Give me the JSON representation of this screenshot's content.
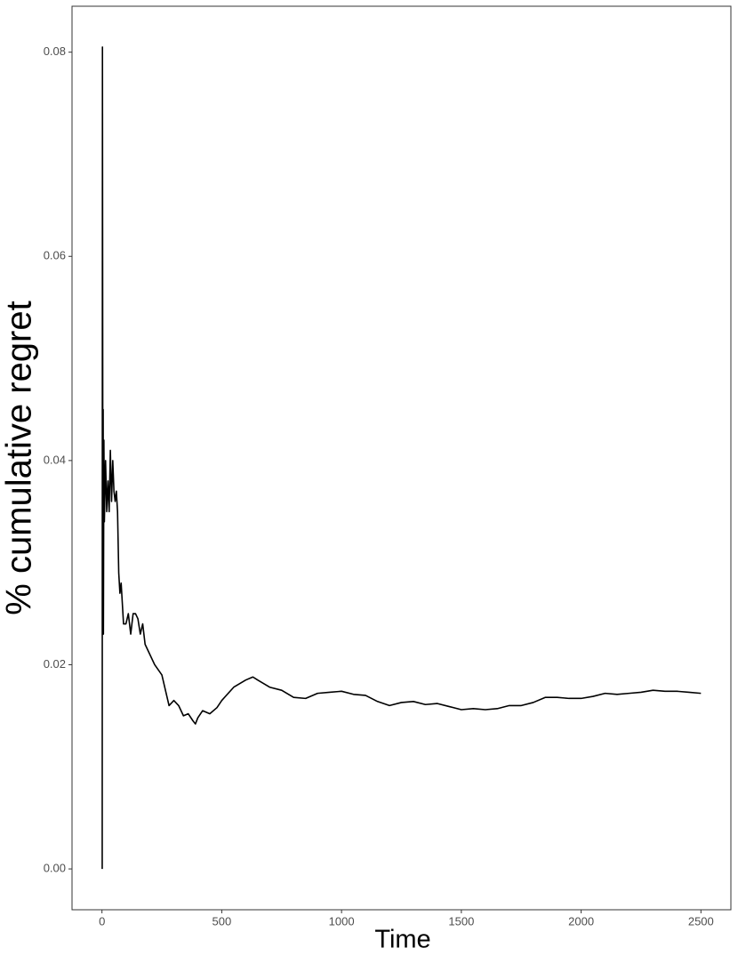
{
  "chart_data": {
    "type": "line",
    "xlabel": "Time",
    "ylabel": "% cumulative regret",
    "color": "#000000",
    "x": [
      1,
      2,
      3,
      4,
      5,
      6,
      8,
      10,
      15,
      20,
      25,
      30,
      35,
      40,
      45,
      50,
      55,
      60,
      65,
      70,
      75,
      80,
      90,
      100,
      110,
      120,
      130,
      140,
      150,
      160,
      170,
      180,
      200,
      220,
      250,
      270,
      280,
      300,
      320,
      340,
      360,
      380,
      390,
      400,
      420,
      450,
      480,
      500,
      550,
      600,
      630,
      650,
      700,
      750,
      800,
      850,
      900,
      950,
      1000,
      1050,
      1100,
      1150,
      1200,
      1250,
      1300,
      1350,
      1400,
      1450,
      1500,
      1550,
      1600,
      1650,
      1700,
      1750,
      1800,
      1850,
      1900,
      1950,
      2000,
      2050,
      2100,
      2150,
      2200,
      2250,
      2300,
      2350,
      2400,
      2450,
      2500
    ],
    "values": [
      0,
      0.0805,
      0.052,
      0.023,
      0.045,
      0.023,
      0.042,
      0.034,
      0.04,
      0.035,
      0.038,
      0.035,
      0.041,
      0.036,
      0.04,
      0.037,
      0.036,
      0.037,
      0.035,
      0.029,
      0.027,
      0.028,
      0.024,
      0.024,
      0.025,
      0.023,
      0.025,
      0.025,
      0.0245,
      0.023,
      0.024,
      0.022,
      0.021,
      0.02,
      0.019,
      0.017,
      0.016,
      0.0165,
      0.016,
      0.015,
      0.0152,
      0.0145,
      0.0142,
      0.0148,
      0.0155,
      0.0152,
      0.0158,
      0.0165,
      0.0178,
      0.0185,
      0.0188,
      0.0185,
      0.0178,
      0.0175,
      0.0168,
      0.0167,
      0.0172,
      0.0173,
      0.0174,
      0.0171,
      0.017,
      0.0164,
      0.016,
      0.0163,
      0.0164,
      0.0161,
      0.0162,
      0.0159,
      0.0156,
      0.0157,
      0.0156,
      0.0157,
      0.016,
      0.016,
      0.0163,
      0.0168,
      0.0168,
      0.0167,
      0.0167,
      0.0169,
      0.0172,
      0.0171,
      0.0172,
      0.0173,
      0.0175,
      0.0174,
      0.0174,
      0.0173,
      0.0172
    ],
    "xlim": [
      -125,
      2625
    ],
    "xticks": [
      0,
      500,
      1000,
      1500,
      2000,
      2500
    ],
    "ylim": [
      -0.004,
      0.0845
    ],
    "yticks": [
      {
        "value": 0,
        "label": "0.00"
      },
      0.02,
      0.04,
      0.06,
      0.08
    ]
  }
}
